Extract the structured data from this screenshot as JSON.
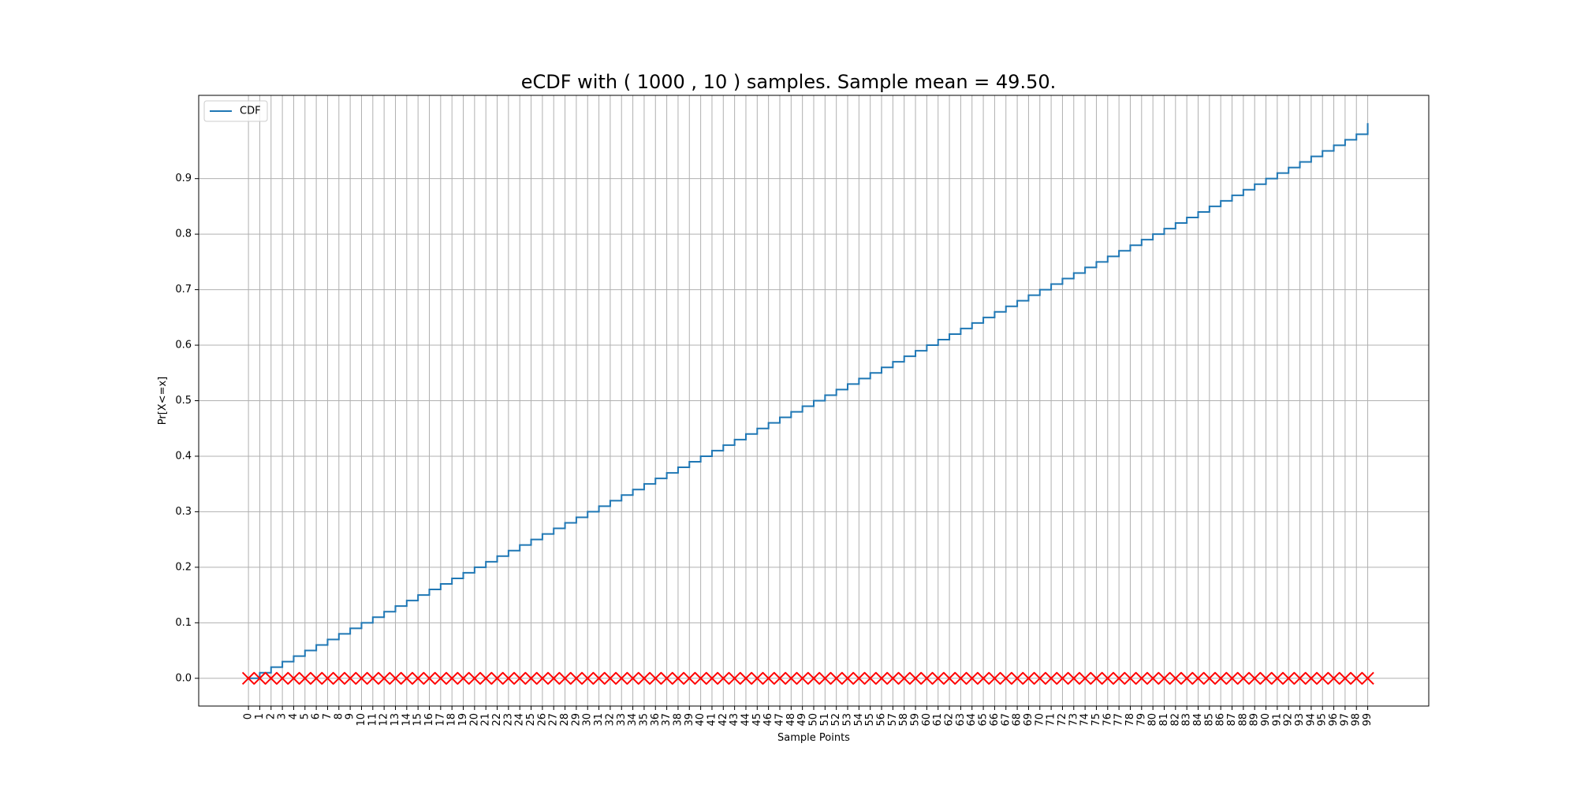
{
  "chart_data": {
    "type": "line",
    "title": "eCDF with ( 1000 , 10 ) samples. Sample mean = 49.50.",
    "xlabel": "Sample Points",
    "ylabel": "Pr[X<=x]",
    "x_ticks": [
      0,
      1,
      2,
      3,
      4,
      5,
      6,
      7,
      8,
      9,
      10,
      11,
      12,
      13,
      14,
      15,
      16,
      17,
      18,
      19,
      20,
      21,
      22,
      23,
      24,
      25,
      26,
      27,
      28,
      29,
      30,
      31,
      32,
      33,
      34,
      35,
      36,
      37,
      38,
      39,
      40,
      41,
      42,
      43,
      44,
      45,
      46,
      47,
      48,
      49,
      50,
      51,
      52,
      53,
      54,
      55,
      56,
      57,
      58,
      59,
      60,
      61,
      62,
      63,
      64,
      65,
      66,
      67,
      68,
      69,
      70,
      71,
      72,
      73,
      74,
      75,
      76,
      77,
      78,
      79,
      80,
      81,
      82,
      83,
      84,
      85,
      86,
      87,
      88,
      89,
      90,
      91,
      92,
      93,
      94,
      95,
      96,
      97,
      98,
      99
    ],
    "y_ticks": [
      0.0,
      0.1,
      0.2,
      0.3,
      0.4,
      0.5,
      0.6,
      0.7,
      0.8,
      0.9
    ],
    "xlim": [
      -4.4,
      104.4
    ],
    "ylim": [
      -0.05,
      1.05
    ],
    "grid": true,
    "legend_placement": "upper-left",
    "series": [
      {
        "name": "CDF",
        "style": "step",
        "color": "#1f77b4",
        "x": [
          0,
          1,
          2,
          3,
          4,
          5,
          6,
          7,
          8,
          9,
          10,
          11,
          12,
          13,
          14,
          15,
          16,
          17,
          18,
          19,
          20,
          21,
          22,
          23,
          24,
          25,
          26,
          27,
          28,
          29,
          30,
          31,
          32,
          33,
          34,
          35,
          36,
          37,
          38,
          39,
          40,
          41,
          42,
          43,
          44,
          45,
          46,
          47,
          48,
          49,
          50,
          51,
          52,
          53,
          54,
          55,
          56,
          57,
          58,
          59,
          60,
          61,
          62,
          63,
          64,
          65,
          66,
          67,
          68,
          69,
          70,
          71,
          72,
          73,
          74,
          75,
          76,
          77,
          78,
          79,
          80,
          81,
          82,
          83,
          84,
          85,
          86,
          87,
          88,
          89,
          90,
          91,
          92,
          93,
          94,
          95,
          96,
          97,
          98,
          99
        ],
        "y": [
          0.0,
          0.01,
          0.02,
          0.03,
          0.04,
          0.05,
          0.06,
          0.07,
          0.08,
          0.09,
          0.1,
          0.11,
          0.12,
          0.13,
          0.14,
          0.15,
          0.16,
          0.17,
          0.18,
          0.19,
          0.2,
          0.21,
          0.22,
          0.23,
          0.24,
          0.25,
          0.26,
          0.27,
          0.28,
          0.29,
          0.3,
          0.31,
          0.32,
          0.33,
          0.34,
          0.35,
          0.36,
          0.37,
          0.38,
          0.39,
          0.4,
          0.41,
          0.42,
          0.43,
          0.44,
          0.45,
          0.46,
          0.47,
          0.48,
          0.49,
          0.5,
          0.51,
          0.52,
          0.53,
          0.54,
          0.55,
          0.56,
          0.57,
          0.58,
          0.59,
          0.6,
          0.61,
          0.62,
          0.63,
          0.64,
          0.65,
          0.66,
          0.67,
          0.68,
          0.69,
          0.7,
          0.71,
          0.72,
          0.73,
          0.74,
          0.75,
          0.76,
          0.77,
          0.78,
          0.79,
          0.8,
          0.81,
          0.82,
          0.83,
          0.84,
          0.85,
          0.86,
          0.87,
          0.88,
          0.89,
          0.9,
          0.91,
          0.92,
          0.93,
          0.94,
          0.95,
          0.96,
          0.97,
          0.98,
          0.99
        ],
        "final_y": 1.0
      },
      {
        "style": "markers",
        "marker": "x",
        "color": "#ff0000",
        "x": [
          0,
          1,
          2,
          3,
          4,
          5,
          6,
          7,
          8,
          9,
          10,
          11,
          12,
          13,
          14,
          15,
          16,
          17,
          18,
          19,
          20,
          21,
          22,
          23,
          24,
          25,
          26,
          27,
          28,
          29,
          30,
          31,
          32,
          33,
          34,
          35,
          36,
          37,
          38,
          39,
          40,
          41,
          42,
          43,
          44,
          45,
          46,
          47,
          48,
          49,
          50,
          51,
          52,
          53,
          54,
          55,
          56,
          57,
          58,
          59,
          60,
          61,
          62,
          63,
          64,
          65,
          66,
          67,
          68,
          69,
          70,
          71,
          72,
          73,
          74,
          75,
          76,
          77,
          78,
          79,
          80,
          81,
          82,
          83,
          84,
          85,
          86,
          87,
          88,
          89,
          90,
          91,
          92,
          93,
          94,
          95,
          96,
          97,
          98,
          99
        ],
        "y_value": 0.0
      }
    ]
  }
}
